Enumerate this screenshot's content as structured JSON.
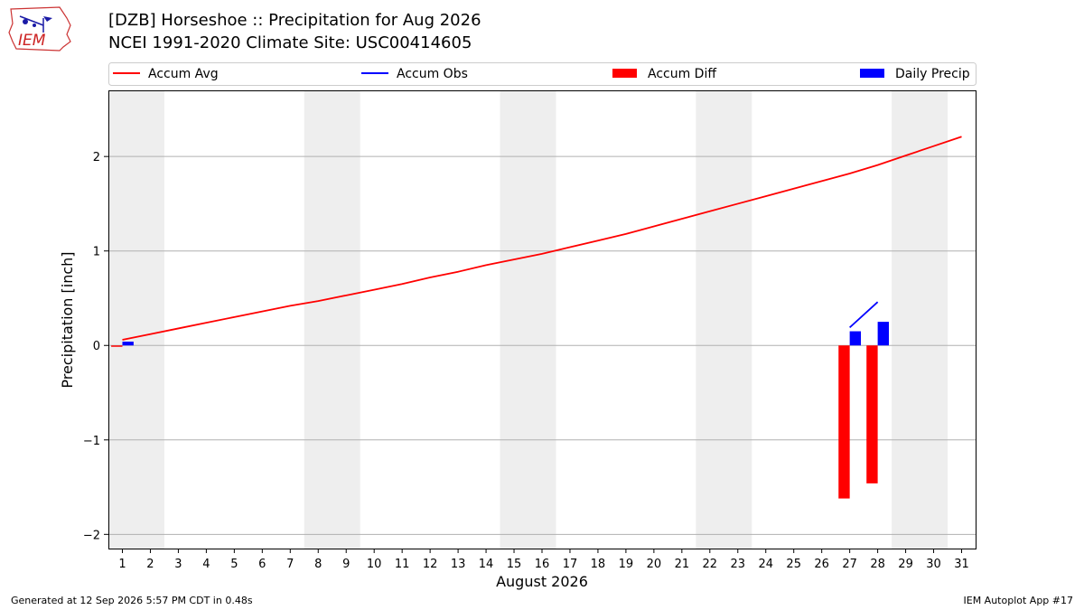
{
  "header": {
    "title": "[DZB] Horseshoe :: Precipitation for Aug 2026",
    "subtitle": "NCEI 1991-2020 Climate Site: USC00414605"
  },
  "logo": {
    "text": "IEM",
    "icon": "iem-logo-icon",
    "color": "#cc2222"
  },
  "footer": {
    "left": "Generated at 12 Sep 2026 5:57 PM CDT in 0.48s",
    "right": "IEM Autoplot App #17"
  },
  "chart_data": {
    "type": "bar",
    "xlabel": "August 2026",
    "ylabel": "Precipitation [inch]",
    "xlim": [
      0.5,
      31.5
    ],
    "ylim": [
      -2.15,
      2.7
    ],
    "x": [
      1,
      2,
      3,
      4,
      5,
      6,
      7,
      8,
      9,
      10,
      11,
      12,
      13,
      14,
      15,
      16,
      17,
      18,
      19,
      20,
      21,
      22,
      23,
      24,
      25,
      26,
      27,
      28,
      29,
      30,
      31
    ],
    "yticks": [
      -2,
      -1,
      0,
      1,
      2
    ],
    "ytick_labels": [
      "−2",
      "−1",
      "0",
      "1",
      "2"
    ],
    "grid": "horizontal",
    "weekend_shading": [
      [
        1,
        2
      ],
      [
        8,
        9
      ],
      [
        15,
        16
      ],
      [
        22,
        23
      ],
      [
        29,
        30
      ]
    ],
    "legend": {
      "placement": "top",
      "entries": [
        {
          "label": "Accum Avg",
          "kind": "line",
          "color": "#ff0000"
        },
        {
          "label": "Accum Obs",
          "kind": "line",
          "color": "#0000ff"
        },
        {
          "label": "Accum Diff",
          "kind": "bar",
          "color": "#ff0000"
        },
        {
          "label": "Daily Precip",
          "kind": "bar",
          "color": "#0000ff"
        }
      ]
    },
    "series": [
      {
        "name": "Accum Avg",
        "kind": "line",
        "color": "#ff0000",
        "x": [
          1,
          2,
          3,
          4,
          5,
          6,
          7,
          8,
          9,
          10,
          11,
          12,
          13,
          14,
          15,
          16,
          17,
          18,
          19,
          20,
          21,
          22,
          23,
          24,
          25,
          26,
          27,
          28,
          29,
          30,
          31
        ],
        "values": [
          0.06,
          0.12,
          0.18,
          0.24,
          0.3,
          0.36,
          0.42,
          0.47,
          0.53,
          0.59,
          0.65,
          0.72,
          0.78,
          0.85,
          0.91,
          0.97,
          1.04,
          1.11,
          1.18,
          1.26,
          1.34,
          1.42,
          1.5,
          1.58,
          1.66,
          1.74,
          1.82,
          1.91,
          2.01,
          2.11,
          2.21
        ]
      },
      {
        "name": "Accum Obs",
        "kind": "line",
        "color": "#0000ff",
        "x": [
          27,
          28
        ],
        "values": [
          0.19,
          0.46
        ]
      },
      {
        "name": "Accum Diff",
        "kind": "bar",
        "color": "#ff0000",
        "x": [
          1,
          27,
          28
        ],
        "values": [
          0.0,
          -1.62,
          -1.46
        ]
      },
      {
        "name": "Daily Precip",
        "kind": "bar",
        "color": "#0000ff",
        "x": [
          1,
          27,
          28
        ],
        "values": [
          0.04,
          0.15,
          0.25
        ]
      }
    ]
  }
}
